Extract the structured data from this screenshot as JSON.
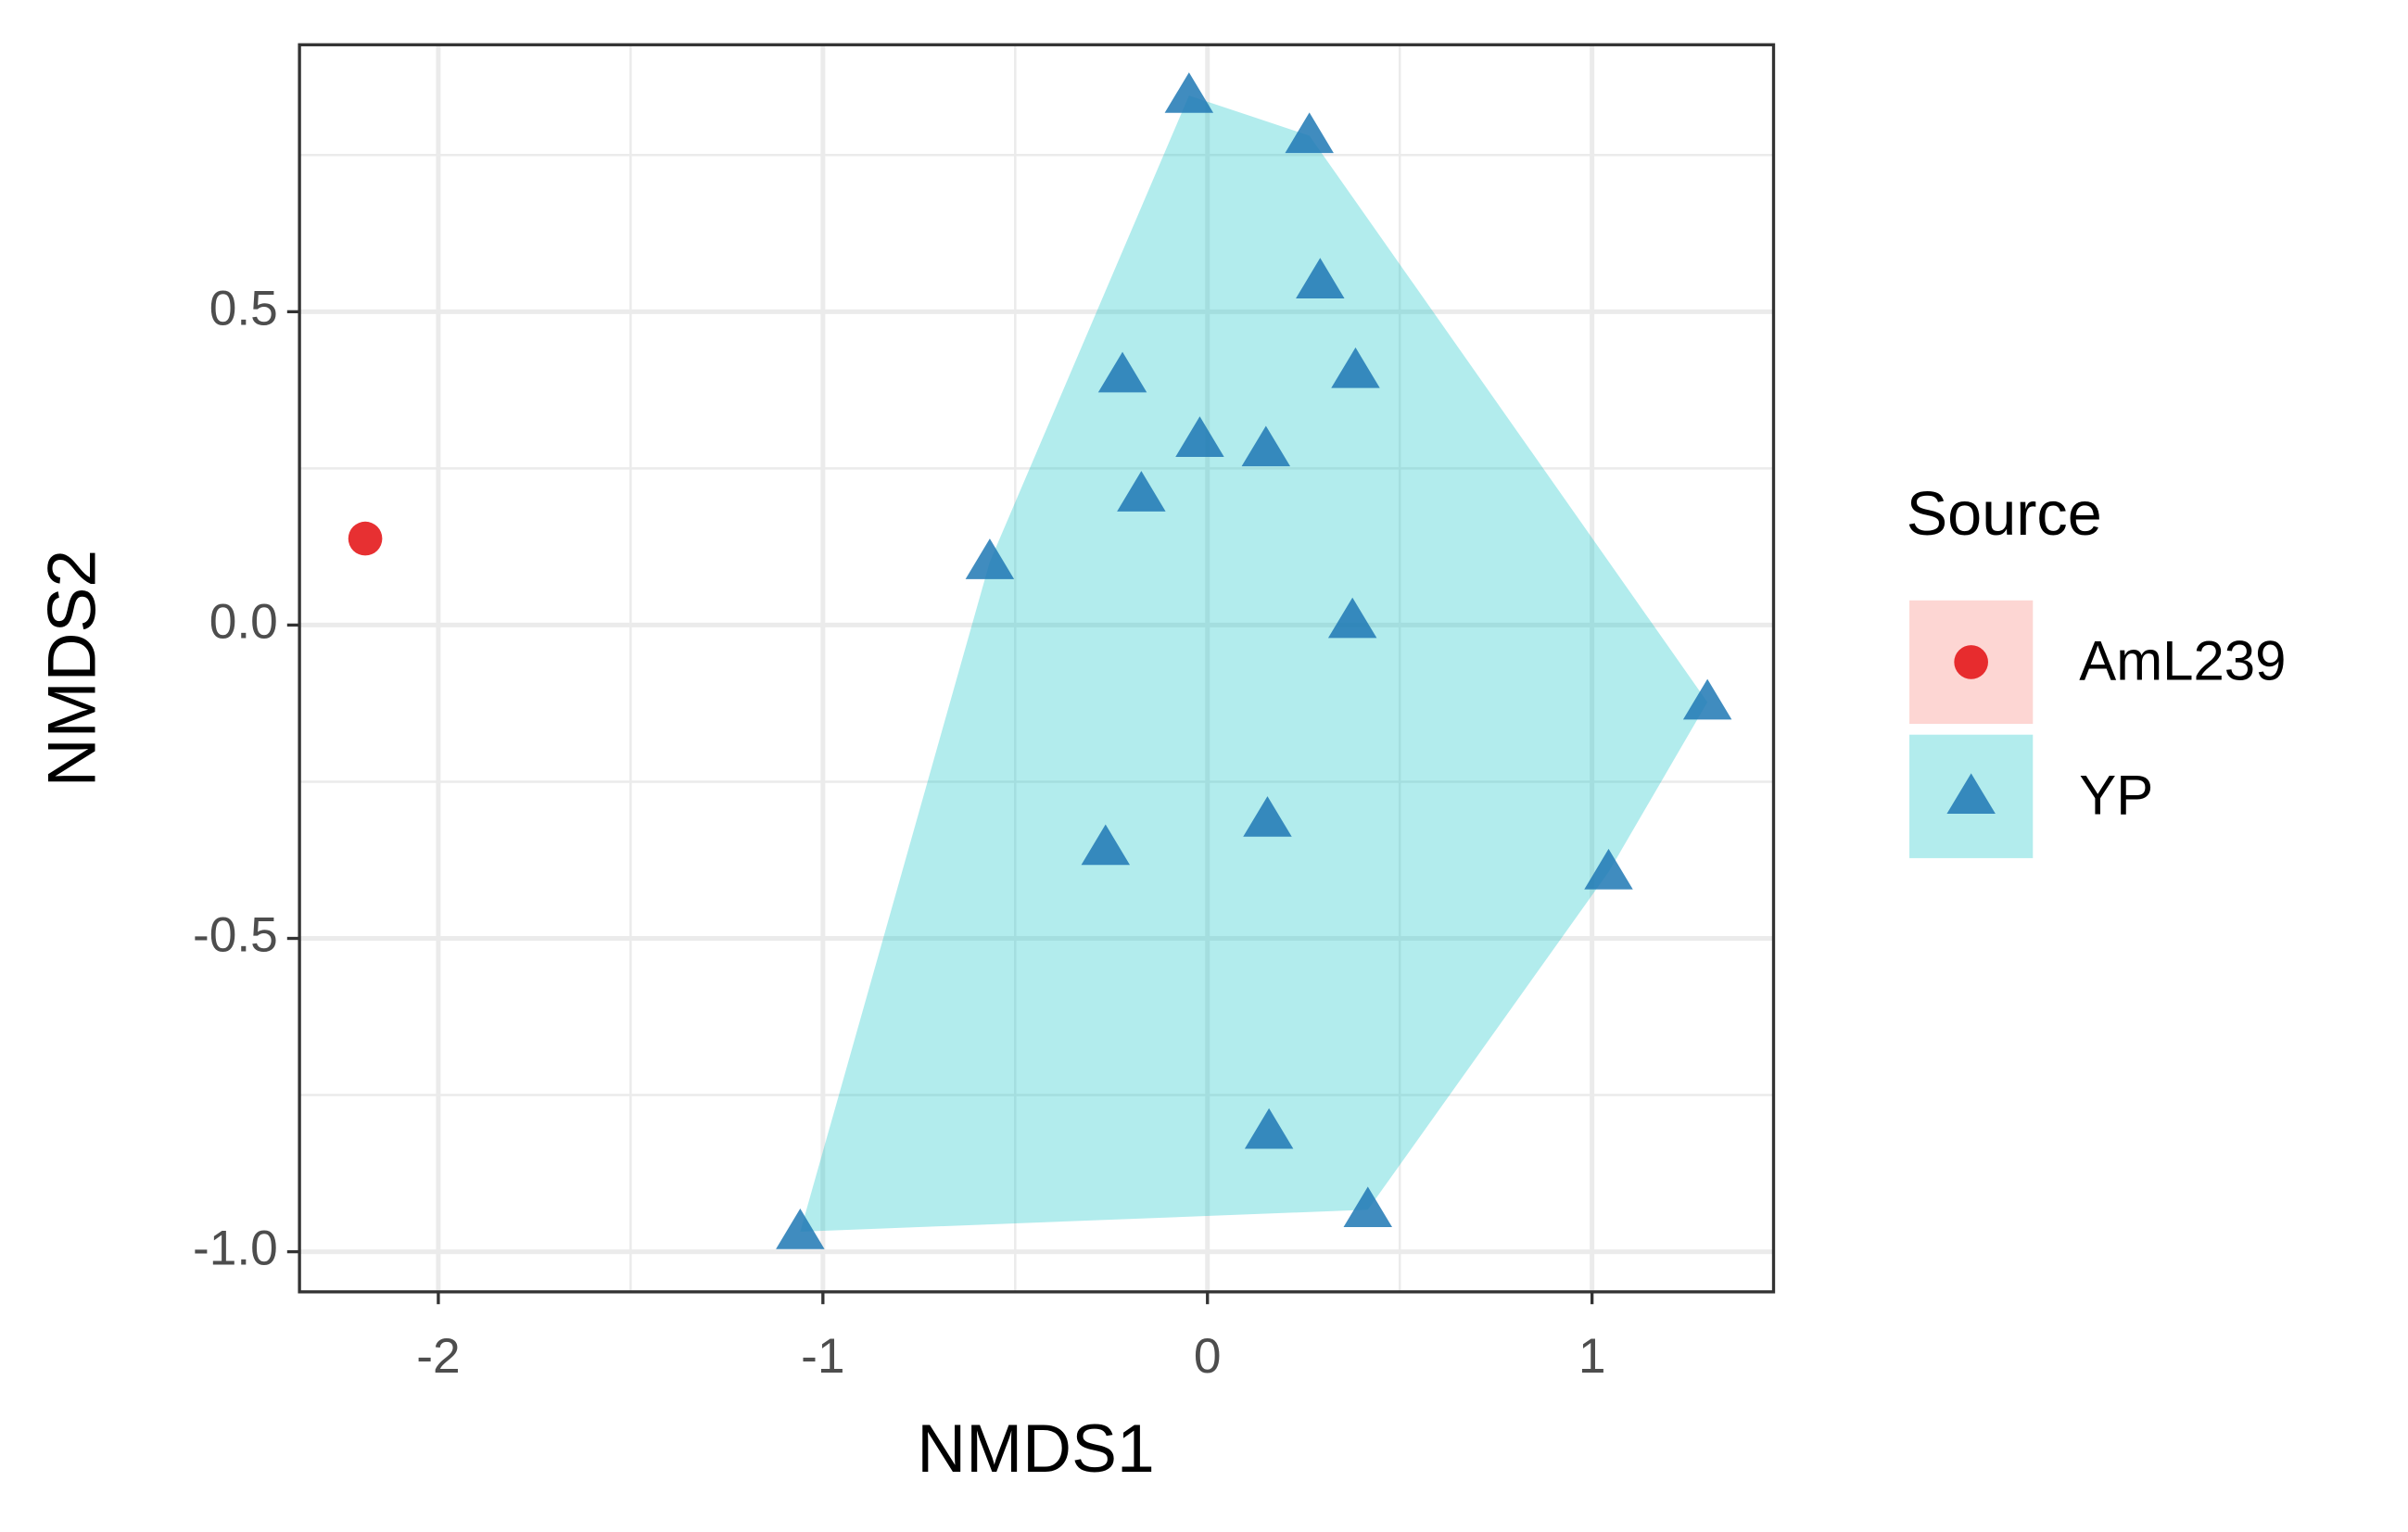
{
  "chart_data": {
    "type": "scatter",
    "xlabel": "NMDS1",
    "ylabel": "NMDS2",
    "legend_title": "Source",
    "xlim": [
      -2.361,
      1.472
    ],
    "ylim": [
      -1.064,
      0.926
    ],
    "xticks": [
      -2,
      -1,
      0,
      1
    ],
    "yticks": [
      {
        "value": 0.5,
        "label": "0.5"
      },
      {
        "value": 0,
        "label": "0.0"
      },
      {
        "value": -0.5,
        "label": "-0.5"
      },
      {
        "value": -1,
        "label": "-1.0"
      }
    ],
    "grid": true,
    "legend": "right",
    "hull": true,
    "series": [
      {
        "name": "AmL239",
        "color": "#e41a1c",
        "hull_color": "#f8766d",
        "marker": "circle",
        "x": [
          -2.19
        ],
        "values": [
          0.138
        ]
      },
      {
        "name": "YP",
        "color": "#1f78b4",
        "hull_color": "#00bfc4",
        "marker": "triangle",
        "x": [
          -0.048,
          0.265,
          0.293,
          -0.221,
          0.385,
          -0.02,
          0.152,
          -0.172,
          -0.566,
          0.377,
          1.3,
          -0.265,
          0.156,
          1.043,
          0.16,
          0.417,
          -1.059
        ],
        "values": [
          0.845,
          0.781,
          0.549,
          0.399,
          0.406,
          0.296,
          0.281,
          0.209,
          0.101,
          0.007,
          -0.123,
          -0.355,
          -0.31,
          -0.394,
          -0.808,
          -0.933,
          -0.968
        ]
      }
    ]
  }
}
